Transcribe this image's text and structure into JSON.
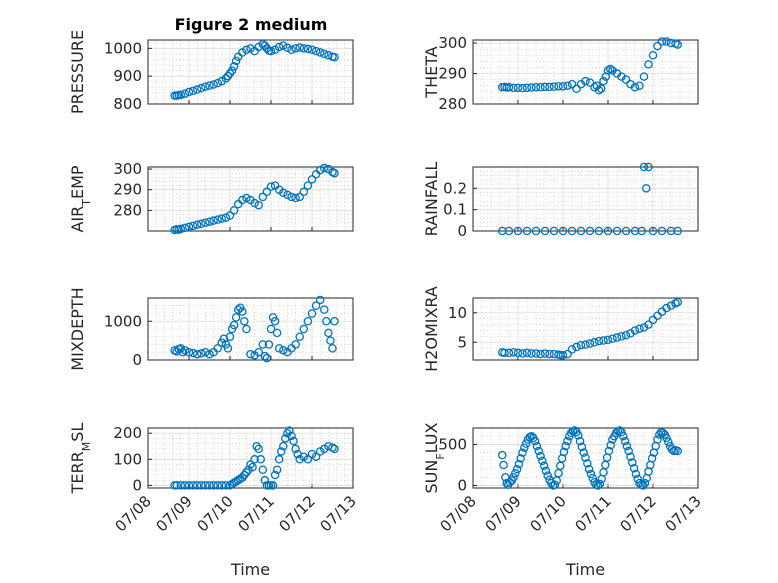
{
  "figure": {
    "title": "Figure 2 medium",
    "marker_color": "#0072BD"
  },
  "chart_data": [
    {
      "type": "scatter",
      "ylabel": "PRESSURE",
      "ylim": [
        800,
        1030
      ],
      "yticks": [
        800,
        900,
        1000
      ],
      "yticklabels": [
        "800",
        "900",
        "1000"
      ],
      "xlim": [
        0,
        5
      ],
      "xticks": [
        "07/08",
        "07/09",
        "07/10",
        "07/11",
        "07/12",
        "07/13"
      ],
      "xlabel": "",
      "series": [
        {
          "x": [
            0.65,
            0.7,
            0.75,
            0.8,
            0.9,
            1.0,
            1.1,
            1.2,
            1.3,
            1.4,
            1.5,
            1.6,
            1.7,
            1.8,
            1.9,
            1.95,
            2.0,
            2.05,
            2.1,
            2.15,
            2.2,
            2.3,
            2.4,
            2.5,
            2.6,
            2.7,
            2.8,
            2.85,
            2.9,
            2.95,
            3.0,
            3.1,
            3.2,
            3.3,
            3.4,
            3.5,
            3.6,
            3.7,
            3.8,
            3.9,
            4.0,
            4.1,
            4.2,
            4.3,
            4.4,
            4.5,
            4.55
          ],
          "y": [
            830,
            830,
            832,
            833,
            837,
            843,
            847,
            852,
            857,
            862,
            866,
            870,
            875,
            882,
            892,
            900,
            910,
            920,
            935,
            955,
            970,
            985,
            995,
            1000,
            990,
            1005,
            1015,
            1010,
            1000,
            992,
            990,
            995,
            1005,
            1010,
            1002,
            995,
            1000,
            1003,
            1000,
            998,
            995,
            990,
            985,
            980,
            975,
            970,
            968
          ]
        }
      ]
    },
    {
      "type": "scatter",
      "ylabel": "THETA",
      "ylim": [
        280,
        301
      ],
      "yticks": [
        280,
        290,
        300
      ],
      "yticklabels": [
        "280",
        "290",
        "300"
      ],
      "xlim": [
        0,
        5
      ],
      "xticks": [
        "07/08",
        "07/09",
        "07/10",
        "07/11",
        "07/12",
        "07/13"
      ],
      "xlabel": "",
      "series": [
        {
          "x": [
            0.65,
            0.7,
            0.75,
            0.8,
            0.9,
            1.0,
            1.1,
            1.2,
            1.3,
            1.4,
            1.5,
            1.6,
            1.7,
            1.8,
            1.9,
            2.0,
            2.1,
            2.2,
            2.3,
            2.4,
            2.5,
            2.6,
            2.7,
            2.75,
            2.8,
            2.85,
            2.9,
            2.95,
            3.0,
            3.05,
            3.1,
            3.2,
            3.3,
            3.4,
            3.5,
            3.6,
            3.7,
            3.8,
            3.9,
            4.0,
            4.1,
            4.2,
            4.3,
            4.4,
            4.5,
            4.55
          ],
          "y": [
            285.5,
            285.6,
            285.4,
            285.5,
            285.3,
            285.3,
            285.2,
            285.3,
            285.4,
            285.5,
            285.5,
            285.6,
            285.6,
            285.7,
            285.8,
            285.8,
            286.0,
            286.5,
            285.0,
            286.5,
            287.5,
            287.0,
            285.5,
            286.0,
            284.5,
            285.0,
            287.5,
            289.0,
            291.0,
            291.5,
            291.0,
            290.0,
            289.0,
            288.0,
            286.5,
            285.5,
            286.0,
            289.0,
            293.0,
            296.0,
            299.0,
            300.5,
            300.5,
            300.0,
            299.8,
            299.5
          ]
        }
      ]
    },
    {
      "type": "scatter",
      "ylabel": "AIR_TEMP",
      "ylim": [
        270,
        301
      ],
      "yticks": [
        280,
        290,
        300
      ],
      "yticklabels": [
        "280",
        "290",
        "300"
      ],
      "xlim": [
        0,
        5
      ],
      "xticks": [
        "07/08",
        "07/09",
        "07/10",
        "07/11",
        "07/12",
        "07/13"
      ],
      "xlabel": "",
      "series": [
        {
          "x": [
            0.65,
            0.7,
            0.75,
            0.8,
            0.9,
            1.0,
            1.1,
            1.2,
            1.3,
            1.4,
            1.5,
            1.6,
            1.7,
            1.8,
            1.9,
            2.0,
            2.1,
            2.2,
            2.3,
            2.4,
            2.5,
            2.6,
            2.7,
            2.8,
            2.9,
            3.0,
            3.1,
            3.2,
            3.3,
            3.4,
            3.5,
            3.6,
            3.7,
            3.8,
            3.9,
            4.0,
            4.1,
            4.2,
            4.3,
            4.4,
            4.5,
            4.55
          ],
          "y": [
            270.5,
            270.8,
            270.6,
            271.0,
            271.5,
            272.0,
            272.5,
            273.0,
            273.5,
            274.0,
            274.5,
            275.0,
            275.5,
            276.0,
            276.5,
            277.5,
            280.0,
            283.0,
            285.0,
            286.0,
            285.0,
            283.5,
            282.5,
            286.5,
            289.0,
            291.5,
            292.0,
            290.0,
            288.5,
            287.5,
            286.5,
            286.0,
            286.5,
            289.0,
            292.0,
            295.0,
            297.5,
            299.5,
            300.5,
            300.0,
            298.5,
            298.0
          ]
        }
      ]
    },
    {
      "type": "scatter",
      "ylabel": "RAINFALL",
      "ylim": [
        0,
        0.3
      ],
      "yticks": [
        0,
        0.1,
        0.2
      ],
      "yticklabels": [
        "0",
        "0.1",
        "0.2"
      ],
      "xlim": [
        0,
        5
      ],
      "xticks": [
        "07/08",
        "07/09",
        "07/10",
        "07/11",
        "07/12",
        "07/13"
      ],
      "xlabel": "",
      "series": [
        {
          "x": [
            0.65,
            0.8,
            1.0,
            1.2,
            1.4,
            1.6,
            1.8,
            2.0,
            2.2,
            2.4,
            2.6,
            2.8,
            3.0,
            3.2,
            3.4,
            3.6,
            3.75,
            3.8,
            3.85,
            3.9,
            4.0,
            4.2,
            4.4,
            4.55
          ],
          "y": [
            0,
            0,
            0,
            0,
            0,
            0,
            0,
            0,
            0,
            0,
            0,
            0,
            0,
            0,
            0,
            0,
            0,
            0.3,
            0.2,
            0.3,
            0,
            0,
            0,
            0
          ]
        }
      ]
    },
    {
      "type": "scatter",
      "ylabel": "MIXDEPTH",
      "ylim": [
        0,
        1600
      ],
      "yticks": [
        0,
        1000
      ],
      "yticklabels": [
        "0",
        "1000"
      ],
      "xlim": [
        0,
        5
      ],
      "xticks": [
        "07/08",
        "07/09",
        "07/10",
        "07/11",
        "07/12",
        "07/13"
      ],
      "xlabel": "",
      "series": [
        {
          "x": [
            0.65,
            0.7,
            0.75,
            0.8,
            0.85,
            0.9,
            1.0,
            1.1,
            1.2,
            1.3,
            1.4,
            1.5,
            1.6,
            1.7,
            1.8,
            1.85,
            1.9,
            1.95,
            2.0,
            2.05,
            2.1,
            2.15,
            2.2,
            2.25,
            2.3,
            2.35,
            2.4,
            2.5,
            2.6,
            2.7,
            2.8,
            2.85,
            2.9,
            2.95,
            3.0,
            3.05,
            3.1,
            3.15,
            3.2,
            3.3,
            3.4,
            3.5,
            3.6,
            3.7,
            3.8,
            3.9,
            4.0,
            4.1,
            4.2,
            4.3,
            4.35,
            4.4,
            4.45,
            4.5,
            4.55
          ],
          "y": [
            250,
            220,
            280,
            300,
            200,
            250,
            200,
            180,
            150,
            170,
            200,
            150,
            200,
            300,
            450,
            550,
            400,
            300,
            600,
            800,
            900,
            1100,
            1300,
            1350,
            1250,
            1000,
            800,
            150,
            120,
            200,
            400,
            100,
            50,
            400,
            800,
            1100,
            1000,
            700,
            300,
            250,
            200,
            300,
            400,
            600,
            800,
            1000,
            1200,
            1400,
            1550,
            1300,
            1000,
            700,
            500,
            300,
            1000
          ]
        }
      ]
    },
    {
      "type": "scatter",
      "ylabel": "H2OMIXRA",
      "ylim": [
        2,
        12.5
      ],
      "yticks": [
        5,
        10
      ],
      "yticklabels": [
        "5",
        "10"
      ],
      "xlim": [
        0,
        5
      ],
      "xticks": [
        "07/08",
        "07/09",
        "07/10",
        "07/11",
        "07/12",
        "07/13"
      ],
      "xlabel": "",
      "series": [
        {
          "x": [
            0.65,
            0.7,
            0.8,
            0.9,
            1.0,
            1.1,
            1.2,
            1.3,
            1.4,
            1.5,
            1.6,
            1.7,
            1.8,
            1.9,
            1.95,
            2.0,
            2.1,
            2.2,
            2.3,
            2.4,
            2.5,
            2.6,
            2.7,
            2.8,
            2.9,
            3.0,
            3.1,
            3.2,
            3.3,
            3.4,
            3.5,
            3.6,
            3.7,
            3.8,
            3.9,
            4.0,
            4.1,
            4.2,
            4.3,
            4.4,
            4.5,
            4.55
          ],
          "y": [
            3.3,
            3.2,
            3.2,
            3.3,
            3.2,
            3.1,
            3.2,
            3.1,
            3.1,
            3.0,
            3.1,
            3.0,
            3.0,
            2.9,
            2.8,
            2.8,
            3.0,
            3.8,
            4.2,
            4.5,
            4.6,
            4.8,
            5.0,
            5.2,
            5.3,
            5.4,
            5.6,
            5.8,
            6.0,
            6.2,
            6.5,
            7.0,
            7.3,
            7.5,
            8.0,
            8.8,
            9.5,
            10.2,
            10.8,
            11.2,
            11.6,
            11.8
          ]
        }
      ]
    },
    {
      "type": "scatter",
      "ylabel": "TERR_MSL",
      "ylim": [
        -10,
        220
      ],
      "yticks": [
        0,
        100,
        200
      ],
      "yticklabels": [
        "0",
        "100",
        "200"
      ],
      "xlim": [
        0,
        5
      ],
      "xticks": [
        "07/08",
        "07/09",
        "07/10",
        "07/11",
        "07/12",
        "07/13"
      ],
      "xlabel": "Time",
      "series": [
        {
          "x": [
            0.65,
            0.7,
            0.8,
            0.9,
            1.0,
            1.1,
            1.2,
            1.3,
            1.4,
            1.5,
            1.6,
            1.7,
            1.8,
            1.9,
            2.0,
            2.05,
            2.1,
            2.15,
            2.2,
            2.25,
            2.3,
            2.35,
            2.4,
            2.45,
            2.5,
            2.55,
            2.6,
            2.65,
            2.7,
            2.75,
            2.8,
            2.85,
            2.9,
            2.95,
            3.0,
            3.05,
            3.1,
            3.15,
            3.2,
            3.25,
            3.3,
            3.35,
            3.4,
            3.45,
            3.5,
            3.55,
            3.6,
            3.65,
            3.7,
            3.8,
            3.9,
            4.0,
            4.1,
            4.2,
            4.3,
            4.4,
            4.5,
            4.55
          ],
          "y": [
            0,
            0,
            0,
            0,
            0,
            0,
            0,
            0,
            0,
            0,
            0,
            0,
            0,
            0,
            0,
            5,
            10,
            15,
            20,
            25,
            30,
            40,
            50,
            60,
            80,
            70,
            100,
            150,
            140,
            100,
            60,
            20,
            0,
            0,
            0,
            0,
            40,
            60,
            100,
            130,
            150,
            180,
            200,
            210,
            190,
            170,
            140,
            120,
            100,
            110,
            100,
            120,
            110,
            130,
            140,
            150,
            145,
            140
          ]
        }
      ]
    },
    {
      "type": "scatter",
      "ylabel": "SUN_FLUX",
      "ylim": [
        -30,
        700
      ],
      "yticks": [
        0,
        500
      ],
      "yticklabels": [
        "0",
        "500"
      ],
      "xlim": [
        0,
        5
      ],
      "xticks": [
        "07/08",
        "07/09",
        "07/10",
        "07/11",
        "07/12",
        "07/13"
      ],
      "xlabel": "Time",
      "series": [
        {
          "x": [
            0.65,
            0.68,
            0.72,
            0.75,
            0.78,
            0.82,
            0.86,
            0.9,
            0.94,
            0.98,
            1.02,
            1.06,
            1.1,
            1.14,
            1.18,
            1.22,
            1.26,
            1.3,
            1.34,
            1.38,
            1.42,
            1.46,
            1.5,
            1.54,
            1.58,
            1.62,
            1.66,
            1.7,
            1.74,
            1.78,
            1.82,
            1.86,
            1.9,
            1.94,
            1.98,
            2.02,
            2.06,
            2.1,
            2.14,
            2.18,
            2.22,
            2.26,
            2.3,
            2.34,
            2.38,
            2.42,
            2.46,
            2.5,
            2.54,
            2.58,
            2.62,
            2.66,
            2.7,
            2.74,
            2.78,
            2.82,
            2.86,
            2.9,
            2.94,
            2.98,
            3.02,
            3.06,
            3.1,
            3.14,
            3.18,
            3.22,
            3.26,
            3.3,
            3.34,
            3.38,
            3.42,
            3.46,
            3.5,
            3.54,
            3.58,
            3.62,
            3.66,
            3.7,
            3.74,
            3.78,
            3.82,
            3.86,
            3.9,
            3.94,
            3.98,
            4.02,
            4.06,
            4.1,
            4.14,
            4.18,
            4.22,
            4.26,
            4.3,
            4.34,
            4.38,
            4.42,
            4.46,
            4.5,
            4.55
          ],
          "y": [
            370,
            250,
            100,
            30,
            10,
            40,
            60,
            100,
            150,
            200,
            260,
            330,
            400,
            460,
            510,
            560,
            590,
            600,
            580,
            540,
            480,
            420,
            360,
            300,
            240,
            180,
            120,
            70,
            30,
            0,
            10,
            60,
            150,
            240,
            330,
            410,
            480,
            540,
            600,
            640,
            660,
            670,
            650,
            610,
            540,
            470,
            400,
            340,
            270,
            200,
            140,
            90,
            40,
            10,
            0,
            20,
            80,
            160,
            250,
            340,
            420,
            490,
            560,
            600,
            640,
            660,
            670,
            650,
            600,
            540,
            480,
            420,
            350,
            280,
            210,
            140,
            80,
            30,
            10,
            0,
            30,
            90,
            170,
            250,
            330,
            400,
            480,
            560,
            620,
            650,
            640,
            620,
            580,
            530,
            480,
            440,
            420,
            430,
            420
          ]
        }
      ]
    }
  ]
}
